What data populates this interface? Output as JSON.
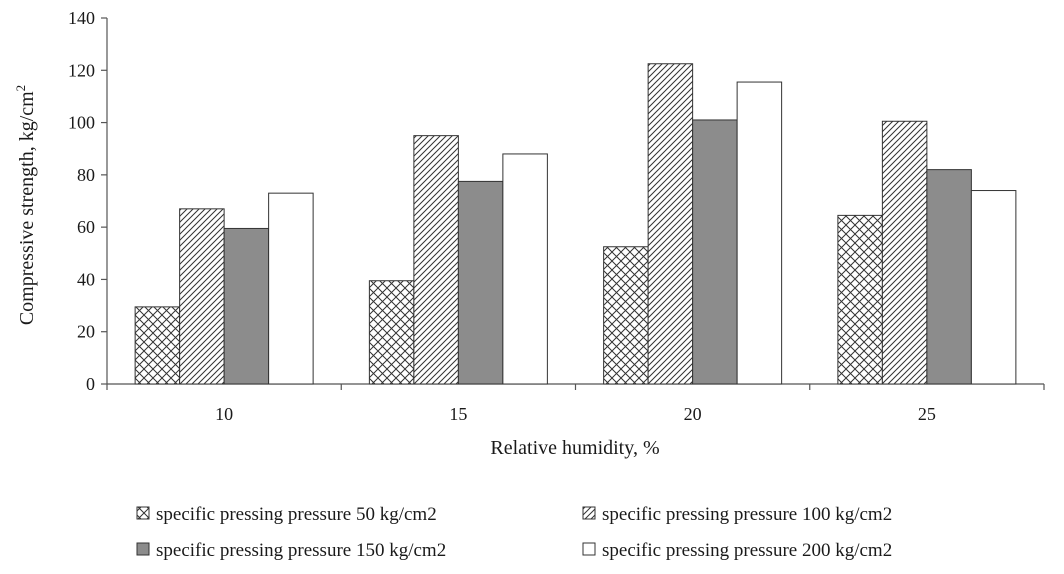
{
  "chart_data": {
    "type": "bar",
    "title": "",
    "xlabel": "Relative humidity, %",
    "ylabel_main": "Compressive strength, kg/cm",
    "ylabel_sup": "2",
    "categories": [
      "10",
      "15",
      "20",
      "25"
    ],
    "ylim": [
      0,
      140
    ],
    "yticks": [
      0,
      20,
      40,
      60,
      80,
      100,
      120,
      140
    ],
    "grid": false,
    "legend_position": "bottom",
    "series": [
      {
        "name": "specific pressing pressure 50 kg/cm2",
        "values": [
          29.5,
          39.5,
          52.5,
          64.5
        ],
        "pattern": "crosshatch",
        "color": "#ffffff"
      },
      {
        "name": "specific pressing pressure 100 kg/cm2",
        "values": [
          67,
          95,
          122.5,
          100.5
        ],
        "pattern": "diagonal",
        "color": "#ffffff"
      },
      {
        "name": "specific pressing pressure 150 kg/cm2",
        "values": [
          59.5,
          77.5,
          101,
          82
        ],
        "pattern": "solid",
        "color": "#8c8c8c"
      },
      {
        "name": "specific pressing pressure 200 kg/cm2",
        "values": [
          73,
          88,
          115.5,
          74
        ],
        "pattern": "none",
        "color": "#ffffff"
      }
    ]
  }
}
